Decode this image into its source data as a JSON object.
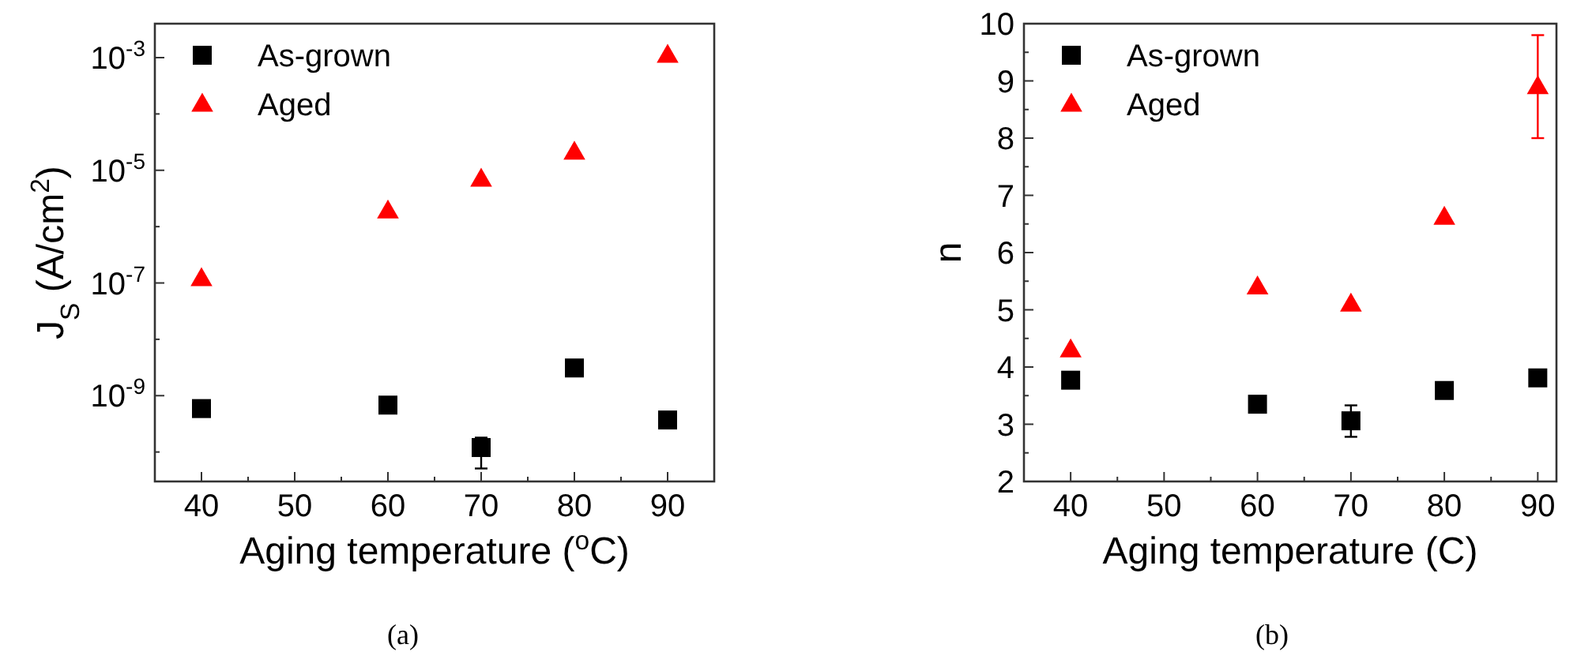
{
  "chart_data": [
    {
      "type": "scatter",
      "xlabel": "Aging temperature ($^{o}$C)",
      "ylabel": "J$_{S}$ (A/cm$^{2}$)",
      "log": "y",
      "xlim": [
        35,
        95
      ],
      "ylim": [
        3e-11,
        0.004
      ],
      "xticks": [
        40,
        {
          "value": 45,
          "label": null
        },
        50,
        {
          "value": 55,
          "label": null
        },
        60,
        {
          "value": 65,
          "label": null
        },
        70,
        {
          "value": 75,
          "label": null
        },
        80,
        {
          "value": 85,
          "label": null
        },
        90
      ],
      "yticks": [
        {
          "value": 1e-10,
          "label": null
        },
        {
          "value": 1e-09,
          "label": "10$^{-9}$"
        },
        {
          "value": 1e-08,
          "label": null
        },
        {
          "value": 1e-07,
          "label": "10$^{-7}$"
        },
        {
          "value": 1e-06,
          "label": null
        },
        {
          "value": 1e-05,
          "label": "10$^{-5}$"
        },
        {
          "value": 0.0001,
          "label": null
        },
        {
          "value": 0.001,
          "label": "10$^{-3}$"
        }
      ],
      "legend": "top left",
      "grid": false,
      "x": [
        40,
        60,
        70,
        80,
        90
      ],
      "series": [
        {
          "name": "As-grown",
          "color": "#000000",
          "marker": "square",
          "values": [
            5.9e-10,
            6.8e-10,
            1.2e-10,
            3.1e-09,
            3.7e-10
          ],
          "errors": [
            null,
            null,
            [
              5.1e-11,
              1.8e-10
            ],
            null,
            null
          ]
        },
        {
          "name": "Aged",
          "color": "#ff0000",
          "marker": "triangle",
          "values": [
            1.2e-07,
            1.9e-06,
            7e-06,
            2.1e-05,
            0.0011
          ]
        }
      ],
      "annotations": [
        "(a)"
      ]
    },
    {
      "type": "scatter",
      "xlabel": "Aging temperature (C)",
      "ylabel": "n",
      "xlim": [
        35,
        92
      ],
      "ylim": [
        2,
        10
      ],
      "xticks": [
        40,
        {
          "value": 45,
          "label": null
        },
        50,
        {
          "value": 55,
          "label": null
        },
        60,
        {
          "value": 65,
          "label": null
        },
        70,
        {
          "value": 75,
          "label": null
        },
        80,
        {
          "value": 85,
          "label": null
        },
        90
      ],
      "yticks": [
        2,
        {
          "value": 2.5,
          "label": null
        },
        3,
        {
          "value": 3.5,
          "label": null
        },
        4,
        {
          "value": 4.5,
          "label": null
        },
        5,
        {
          "value": 5.5,
          "label": null
        },
        6,
        {
          "value": 6.5,
          "label": null
        },
        7,
        {
          "value": 7.5,
          "label": null
        },
        8,
        {
          "value": 8.5,
          "label": null
        },
        9,
        {
          "value": 9.5,
          "label": null
        },
        10
      ],
      "legend": "top left",
      "grid": false,
      "x": [
        40,
        60,
        70,
        80,
        90
      ],
      "series": [
        {
          "name": "As-grown",
          "color": "#000000",
          "marker": "square",
          "values": [
            3.77,
            3.35,
            3.06,
            3.59,
            3.81
          ],
          "errors": [
            null,
            null,
            [
              2.78,
              3.33
            ],
            null,
            0.13
          ]
        },
        {
          "name": "Aged",
          "color": "#ff0000",
          "marker": "triangle",
          "values": [
            4.3,
            5.4,
            5.1,
            6.62,
            8.9
          ],
          "errors": [
            null,
            null,
            null,
            null,
            [
              8.0,
              9.8
            ]
          ]
        }
      ],
      "annotations": [
        "(b)"
      ]
    }
  ]
}
